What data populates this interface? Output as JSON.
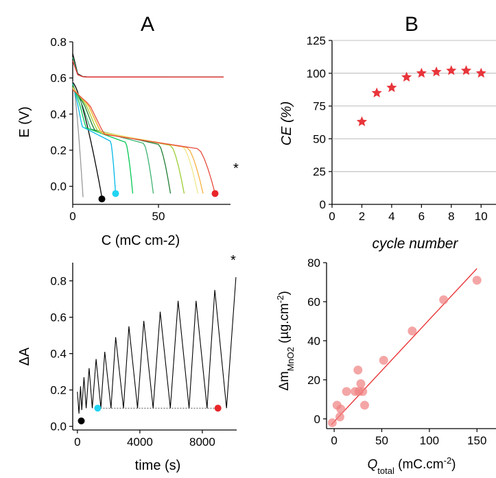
{
  "panels": {
    "A": "A",
    "B": "B"
  },
  "colors": {
    "cycle_palette": [
      "#999999",
      "#000000",
      "#00b7e6",
      "#00c853",
      "#3cb371",
      "#1e7d32",
      "#9acd32",
      "#f0e68c",
      "#f5b041",
      "#e74c3c"
    ],
    "red": "#e8262a",
    "star": "#e8353b",
    "scatter": "#f08080",
    "marker_black": "#000000",
    "marker_cyan": "#21d4f2",
    "marker_red": "#e8262a"
  },
  "chart_data": [
    {
      "id": "A-top",
      "type": "line",
      "xlabel": "C (mC cm-2)",
      "ylabel": "E (V)",
      "xlim": [
        0,
        92
      ],
      "ylim": [
        -0.1,
        0.8
      ],
      "xticks": [
        0,
        50
      ],
      "yticks": [
        0.0,
        0.2,
        0.4,
        0.6,
        0.8
      ],
      "annotation": "*",
      "discharge_end_C": [
        6,
        17,
        25,
        35,
        47,
        57,
        65,
        73,
        76,
        83
      ],
      "markers": [
        {
          "C": 17,
          "E": -0.07,
          "color": "black"
        },
        {
          "C": 25,
          "E": -0.04,
          "color": "cyan"
        },
        {
          "C": 83,
          "E": -0.04,
          "color": "red"
        }
      ]
    },
    {
      "id": "A-bottom",
      "type": "line",
      "xlabel": "time (s)",
      "ylabel": "ΔA",
      "xlim": [
        -300,
        10200
      ],
      "ylim": [
        -0.02,
        0.9
      ],
      "xticks": [
        0,
        4000,
        8000
      ],
      "yticks": [
        0.0,
        0.2,
        0.4,
        0.6,
        0.8
      ],
      "annotation": "*",
      "x": [
        0,
        100,
        200,
        280,
        420,
        560,
        750,
        950,
        1200,
        1500,
        1750,
        2150,
        2450,
        2950,
        3300,
        3850,
        4250,
        4850,
        5300,
        5950,
        6450,
        7150,
        7600,
        8300,
        8800,
        9550,
        10150
      ],
      "y": [
        0.19,
        0.07,
        0.22,
        0.09,
        0.27,
        0.1,
        0.32,
        0.1,
        0.37,
        0.1,
        0.41,
        0.1,
        0.49,
        0.1,
        0.55,
        0.1,
        0.58,
        0.1,
        0.63,
        0.1,
        0.69,
        0.1,
        0.69,
        0.1,
        0.75,
        0.1,
        0.82
      ],
      "baseline": 0.1,
      "markers": [
        {
          "x": 250,
          "y": 0.03,
          "color": "black"
        },
        {
          "x": 1300,
          "y": 0.1,
          "color": "cyan"
        },
        {
          "x": 9000,
          "y": 0.1,
          "color": "red"
        }
      ]
    },
    {
      "id": "B-top",
      "type": "scatter",
      "xlabel": "cycle number",
      "ylabel": "CE (%)",
      "xlim": [
        0,
        11
      ],
      "ylim": [
        0,
        125
      ],
      "xticks": [
        0,
        2,
        4,
        6,
        8,
        10
      ],
      "yticks": [
        0,
        25,
        50,
        75,
        100,
        125
      ],
      "grid": true,
      "x": [
        2,
        3,
        4,
        5,
        6,
        7,
        8,
        9,
        10
      ],
      "y": [
        63,
        85,
        89,
        97,
        100,
        101,
        102,
        102,
        100
      ]
    },
    {
      "id": "B-bottom",
      "type": "scatter",
      "xlabel": "Q",
      "xlabel_sub": "total",
      "xlabel_unit": " (mC.cm",
      "xlabel_sup": "-2",
      "xlabel_end": ")",
      "ylabel": "Δm",
      "ylabel_sub": "MnO2",
      "ylabel_unit": " (µg.cm",
      "ylabel_sup": "-2",
      "ylabel_end": ")",
      "xlim": [
        -8,
        170
      ],
      "ylim": [
        -5,
        80
      ],
      "xticks": [
        0,
        50,
        100,
        150
      ],
      "yticks": [
        0,
        20,
        40,
        60,
        80
      ],
      "x": [
        -2,
        3,
        6,
        7,
        13,
        22,
        25,
        26,
        28,
        30,
        32,
        52,
        82,
        115,
        150
      ],
      "y": [
        -2,
        7,
        1,
        5,
        14,
        14,
        25,
        14,
        18,
        14,
        7,
        30,
        45,
        61,
        71
      ],
      "fit": {
        "x": [
          -3,
          150
        ],
        "y": [
          -3,
          77
        ]
      }
    }
  ]
}
